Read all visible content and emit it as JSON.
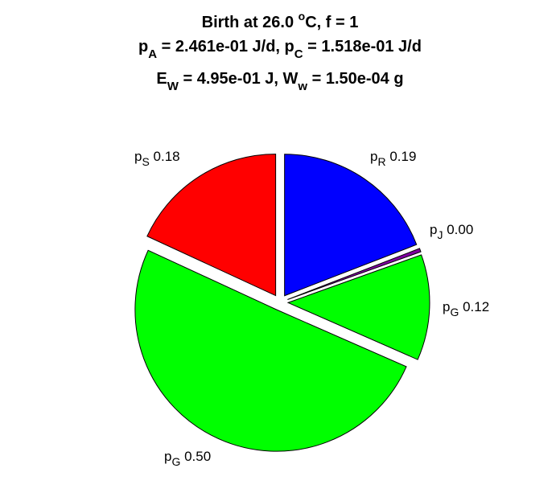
{
  "chart_data": {
    "type": "pie",
    "title": {
      "line1": {
        "a": "Birth at 26.0 ",
        "sup": "o",
        "b": "C, f = 1"
      },
      "line2": {
        "a": "p",
        "sub1": "A",
        "b": " = 2.461e-01 J/d, p",
        "sub2": "C",
        "c": " = 1.518e-01 J/d"
      },
      "line3": {
        "a": "E",
        "sub1": "W",
        "b": " = 4.95e-01 J, W",
        "sub2": "w",
        "c": " = 1.50e-04 g"
      }
    },
    "slices": [
      {
        "name": "pR",
        "base": "p",
        "sub": "R",
        "value_label": "0.19",
        "value": 0.19,
        "color": "#0000ff",
        "exploded": true
      },
      {
        "name": "pJ",
        "base": "p",
        "sub": "J",
        "value_label": "0.00",
        "value": 0.004,
        "color": "#8000a0",
        "exploded": true
      },
      {
        "name": "pG-right",
        "base": "p",
        "sub": "G",
        "value_label": "0.12",
        "value": 0.12,
        "color": "#00ff00",
        "exploded": true
      },
      {
        "name": "pG-bottom",
        "base": "p",
        "sub": "G",
        "value_label": "0.50",
        "value": 0.5,
        "color": "#00ff00",
        "exploded": true
      },
      {
        "name": "pS",
        "base": "p",
        "sub": "S",
        "value_label": "0.18",
        "value": 0.18,
        "color": "#ff0000",
        "exploded": true
      }
    ]
  }
}
